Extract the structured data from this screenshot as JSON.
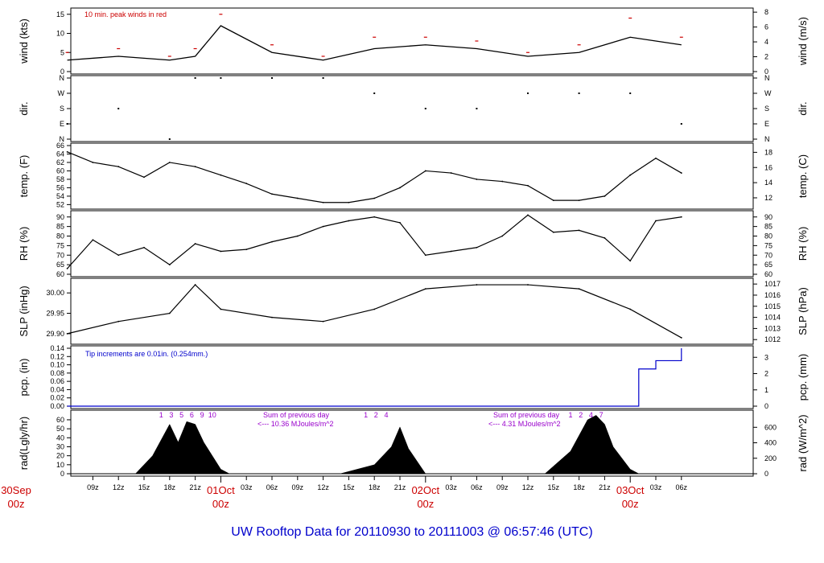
{
  "footer_title": "UW Rooftop Data for 20110930  to  20111003 @ 06:57:46  (UTC)",
  "colors": {
    "red": "#cc0000",
    "blue": "#0000cc",
    "purple": "#9900cc",
    "black": "#000000"
  },
  "x_axis": {
    "hour_ticks": [
      "09z",
      "12z",
      "15z",
      "18z",
      "21z",
      "03z",
      "06z",
      "09z",
      "12z",
      "15z",
      "18z",
      "21z",
      "03z",
      "06z",
      "09z",
      "12z",
      "15z",
      "18z",
      "21z",
      "03z",
      "06z"
    ],
    "day_labels": [
      {
        "top": "30Sep",
        "bottom": "00z"
      },
      {
        "top": "01Oct",
        "bottom": "00z"
      },
      {
        "top": "02Oct",
        "bottom": "00z"
      },
      {
        "top": "03Oct",
        "bottom": "00z"
      }
    ]
  },
  "panels": {
    "wind": {
      "left_label": "wind (kts)",
      "right_label": "wind (m/s)",
      "left_ticks": [
        "0",
        "5",
        "10",
        "15"
      ],
      "right_ticks": [
        "0",
        "2",
        "4",
        "6",
        "8"
      ],
      "note": "10 min. peak winds in red"
    },
    "dir": {
      "left_label": "dir.",
      "right_label": "dir.",
      "left_ticks": [
        "N",
        "E",
        "S",
        "W",
        "N"
      ],
      "right_ticks": [
        "N",
        "E",
        "S",
        "W",
        "N"
      ]
    },
    "temp": {
      "left_label": "temp. (F)",
      "right_label": "temp. (C)",
      "left_ticks": [
        "52",
        "54",
        "56",
        "58",
        "60",
        "62",
        "64",
        "66"
      ],
      "right_ticks": [
        "12",
        "14",
        "16",
        "18"
      ]
    },
    "rh": {
      "left_label": "RH (%)",
      "right_label": "RH (%)",
      "left_ticks": [
        "60",
        "65",
        "70",
        "75",
        "80",
        "85",
        "90"
      ],
      "right_ticks": [
        "60",
        "65",
        "70",
        "75",
        "80",
        "85",
        "90"
      ]
    },
    "slp": {
      "left_label": "SLP (inHg)",
      "right_label": "SLP (hPa)",
      "left_ticks": [
        "29.90",
        "29.95",
        "30.00"
      ],
      "right_ticks": [
        "1012",
        "1013",
        "1014",
        "1015",
        "1016",
        "1017"
      ]
    },
    "pcp": {
      "left_label": "pcp. (in)",
      "right_label": "pcp. (mm)",
      "left_ticks": [
        "0.00",
        "0.02",
        "0.04",
        "0.06",
        "0.08",
        "0.10",
        "0.12",
        "0.14"
      ],
      "right_ticks": [
        "0",
        "1",
        "2",
        "3"
      ],
      "note": "Tip increments are 0.01in. (0.254mm.)"
    },
    "rad": {
      "left_label": "rad(Lgly/hr)",
      "right_label": "rad (W/m^2)",
      "left_ticks": [
        "0",
        "10",
        "20",
        "30",
        "40",
        "50",
        "60"
      ],
      "right_ticks": [
        "0",
        "200",
        "400",
        "600"
      ],
      "sum1_line1": "Sum of previous day",
      "sum1_line2": "<--- 10.36 MJoules/m^2",
      "sum2_line1": "Sum of previous day",
      "sum2_line2": "<--- 4.31 MJoules/m^2",
      "day1_marks": [
        "1",
        "3",
        "5",
        "6",
        "9",
        "10"
      ],
      "day2_marks": [
        "1",
        "2",
        "4"
      ],
      "day3_marks": [
        "1",
        "2",
        "4",
        "7"
      ]
    }
  },
  "chart_data": [
    {
      "type": "line",
      "title": "",
      "ylabel": "wind (kts)",
      "ylim": [
        0,
        16
      ],
      "x": [
        "30Sep 06z",
        "30Sep 12z",
        "30Sep 18z",
        "30Sep 21z",
        "01Oct 00z",
        "01Oct 06z",
        "01Oct 12z",
        "01Oct 18z",
        "02Oct 00z",
        "02Oct 06z",
        "02Oct 12z",
        "02Oct 18z",
        "03Oct 00z",
        "03Oct 06z"
      ],
      "series": [
        {
          "values": [
            3,
            4,
            3,
            4,
            12,
            5,
            3,
            6,
            7,
            6,
            4,
            5,
            9,
            7
          ]
        },
        {
          "values": [
            5,
            6,
            4,
            6,
            15,
            7,
            4,
            9,
            9,
            8,
            5,
            7,
            14,
            9
          ]
        }
      ]
    },
    {
      "type": "scatter",
      "title": "",
      "ylabel": "dir.",
      "x": [
        "30Sep 06z",
        "30Sep 12z",
        "30Sep 18z",
        "30Sep 21z",
        "01Oct 00z",
        "01Oct 06z",
        "01Oct 12z",
        "01Oct 18z",
        "02Oct 00z",
        "02Oct 06z",
        "02Oct 12z",
        "02Oct 18z",
        "03Oct 00z",
        "03Oct 06z"
      ],
      "values": [
        "E",
        "S",
        "N",
        "N",
        "N",
        "N",
        "N",
        "W",
        "S",
        "S",
        "W",
        "W",
        "W",
        "E"
      ]
    },
    {
      "type": "line",
      "title": "",
      "ylabel": "temp. (F)",
      "ylim": [
        51.5,
        66
      ],
      "x": [
        "30Sep 06z",
        "30Sep 09z",
        "30Sep 12z",
        "30Sep 15z",
        "30Sep 18z",
        "30Sep 21z",
        "01Oct 00z",
        "01Oct 03z",
        "01Oct 06z",
        "01Oct 09z",
        "01Oct 12z",
        "01Oct 15z",
        "01Oct 18z",
        "01Oct 21z",
        "02Oct 00z",
        "02Oct 03z",
        "02Oct 06z",
        "02Oct 09z",
        "02Oct 12z",
        "02Oct 15z",
        "02Oct 18z",
        "02Oct 21z",
        "03Oct 00z",
        "03Oct 03z",
        "03Oct 06z"
      ],
      "values": [
        64.5,
        62,
        61,
        58.5,
        62,
        61,
        59,
        57,
        54.5,
        53.5,
        52.5,
        52.5,
        53.5,
        56,
        60,
        59.5,
        58,
        57.5,
        56.5,
        53,
        53,
        54,
        59,
        63,
        59.5
      ]
    },
    {
      "type": "line",
      "title": "",
      "ylabel": "RH (%)",
      "ylim": [
        60,
        92
      ],
      "x": [
        "30Sep 06z",
        "30Sep 09z",
        "30Sep 12z",
        "30Sep 15z",
        "30Sep 18z",
        "30Sep 21z",
        "01Oct 00z",
        "01Oct 03z",
        "01Oct 06z",
        "01Oct 09z",
        "01Oct 12z",
        "01Oct 15z",
        "01Oct 18z",
        "01Oct 21z",
        "02Oct 00z",
        "02Oct 03z",
        "02Oct 06z",
        "02Oct 09z",
        "02Oct 12z",
        "02Oct 15z",
        "02Oct 18z",
        "02Oct 21z",
        "03Oct 00z",
        "03Oct 03z",
        "03Oct 06z"
      ],
      "values": [
        63,
        78,
        70,
        74,
        65,
        76,
        72,
        73,
        77,
        80,
        85,
        88,
        90,
        87,
        70,
        72,
        74,
        80,
        91,
        82,
        83,
        79,
        67,
        88,
        90
      ]
    },
    {
      "type": "line",
      "title": "",
      "ylabel": "SLP (inHg)",
      "ylim": [
        29.88,
        30.03
      ],
      "x": [
        "30Sep 06z",
        "30Sep 12z",
        "30Sep 18z",
        "30Sep 21z",
        "01Oct 00z",
        "01Oct 06z",
        "01Oct 12z",
        "01Oct 18z",
        "02Oct 00z",
        "02Oct 06z",
        "02Oct 12z",
        "02Oct 18z",
        "03Oct 00z",
        "03Oct 06z"
      ],
      "values": [
        29.9,
        29.93,
        29.95,
        30.02,
        29.96,
        29.94,
        29.93,
        29.96,
        30.01,
        30.02,
        30.02,
        30.01,
        29.96,
        29.89
      ]
    },
    {
      "type": "line",
      "title": "",
      "ylabel": "pcp. (in)",
      "ylim": [
        0,
        0.14
      ],
      "x": [
        "30Sep 06z",
        "03Oct 00z",
        "03Oct 01z",
        "03Oct 03z",
        "03Oct 06z"
      ],
      "values": [
        0.0,
        0.0,
        0.09,
        0.11,
        0.14
      ]
    },
    {
      "type": "area",
      "title": "",
      "ylabel": "rad(Lgly/hr)",
      "ylim": [
        0,
        68
      ],
      "x": [
        "30Sep 14z",
        "30Sep 16z",
        "30Sep 18z",
        "30Sep 19z",
        "30Sep 20z",
        "30Sep 21z",
        "30Sep 22z",
        "01Oct 00z",
        "01Oct 01z",
        "01Oct 14z",
        "01Oct 18z",
        "01Oct 20z",
        "01Oct 21z",
        "01Oct 22z",
        "02Oct 00z",
        "02Oct 14z",
        "02Oct 17z",
        "02Oct 19z",
        "02Oct 20z",
        "02Oct 21z",
        "02Oct 22z",
        "03Oct 00z",
        "03Oct 01z"
      ],
      "values": [
        0,
        20,
        55,
        35,
        58,
        55,
        35,
        5,
        0,
        0,
        10,
        30,
        52,
        28,
        0,
        0,
        25,
        60,
        65,
        55,
        30,
        5,
        0
      ]
    }
  ]
}
